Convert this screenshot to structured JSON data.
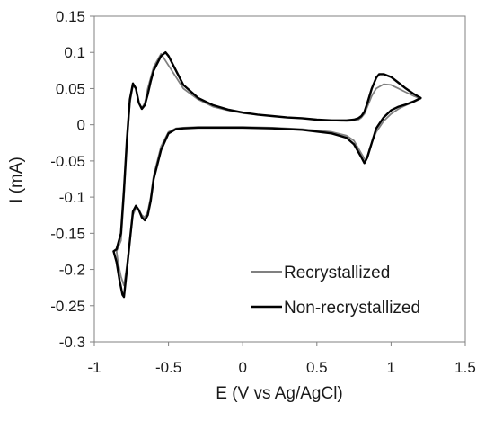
{
  "chart_data": {
    "type": "line",
    "title": "",
    "xlabel": "E (V vs Ag/AgCl)",
    "ylabel": "I (mA)",
    "xlim": [
      -1,
      1.5
    ],
    "ylim": [
      -0.3,
      0.15
    ],
    "x_ticks": [
      -1,
      -0.5,
      0,
      0.5,
      1,
      1.5
    ],
    "x_tick_labels": [
      "-1",
      "-0.5",
      "0",
      "0.5",
      "1",
      "1.5"
    ],
    "y_ticks": [
      0.15,
      0.1,
      0.05,
      0,
      -0.05,
      -0.1,
      -0.15,
      -0.2,
      -0.25,
      -0.3
    ],
    "y_tick_labels": [
      "0.15",
      "0.1",
      "0.05",
      "0",
      "-0.05",
      "-0.1",
      "-0.15",
      "-0.2",
      "-0.25",
      "-0.3"
    ],
    "grid": false,
    "legend_position": "bottom-right",
    "series": [
      {
        "name": "Recrystallized",
        "color": "#808080",
        "x": [
          -0.85,
          -0.84,
          -0.82,
          -0.8,
          -0.78,
          -0.76,
          -0.74,
          -0.72,
          -0.7,
          -0.68,
          -0.66,
          -0.64,
          -0.62,
          -0.6,
          -0.55,
          -0.5,
          -0.45,
          -0.4,
          -0.3,
          -0.2,
          -0.1,
          0.0,
          0.2,
          0.4,
          0.6,
          0.7,
          0.75,
          0.8,
          0.83,
          0.86,
          0.9,
          0.95,
          1.0,
          1.05,
          1.1,
          1.15,
          1.2,
          1.15,
          1.1,
          1.05,
          1.0,
          0.95,
          0.9,
          0.87,
          0.84,
          0.82,
          0.8,
          0.78,
          0.75,
          0.7,
          0.6,
          0.5,
          0.4,
          0.3,
          0.2,
          0.1,
          0.0,
          -0.1,
          -0.2,
          -0.3,
          -0.4,
          -0.5,
          -0.55,
          -0.6,
          -0.62,
          -0.64,
          -0.66,
          -0.68,
          -0.7,
          -0.72,
          -0.74,
          -0.76,
          -0.78,
          -0.8,
          -0.82,
          -0.85
        ],
        "y": [
          -0.175,
          -0.19,
          -0.21,
          -0.222,
          -0.195,
          -0.16,
          -0.125,
          -0.115,
          -0.118,
          -0.125,
          -0.128,
          -0.12,
          -0.1,
          -0.07,
          -0.03,
          -0.01,
          -0.005,
          -0.004,
          -0.003,
          -0.003,
          -0.003,
          -0.003,
          -0.004,
          -0.006,
          -0.01,
          -0.015,
          -0.022,
          -0.04,
          -0.05,
          -0.03,
          -0.01,
          0.005,
          0.015,
          0.022,
          0.027,
          0.031,
          0.036,
          0.04,
          0.045,
          0.05,
          0.055,
          0.056,
          0.05,
          0.04,
          0.025,
          0.015,
          0.01,
          0.007,
          0.006,
          0.005,
          0.006,
          0.007,
          0.009,
          0.01,
          0.012,
          0.014,
          0.016,
          0.02,
          0.025,
          0.035,
          0.05,
          0.082,
          0.098,
          0.08,
          0.065,
          0.05,
          0.03,
          0.023,
          0.03,
          0.05,
          0.054,
          0.03,
          -0.03,
          -0.1,
          -0.16,
          -0.175
        ]
      },
      {
        "name": "Non-recrystallized",
        "color": "#000000",
        "x": [
          -0.87,
          -0.85,
          -0.83,
          -0.81,
          -0.8,
          -0.78,
          -0.76,
          -0.74,
          -0.72,
          -0.7,
          -0.68,
          -0.66,
          -0.64,
          -0.62,
          -0.6,
          -0.55,
          -0.5,
          -0.45,
          -0.4,
          -0.3,
          -0.2,
          -0.1,
          0.0,
          0.2,
          0.4,
          0.6,
          0.7,
          0.75,
          0.8,
          0.82,
          0.84,
          0.87,
          0.9,
          0.95,
          1.0,
          1.05,
          1.1,
          1.15,
          1.2,
          1.15,
          1.1,
          1.05,
          1.0,
          0.95,
          0.92,
          0.9,
          0.87,
          0.84,
          0.82,
          0.8,
          0.78,
          0.75,
          0.7,
          0.6,
          0.5,
          0.4,
          0.3,
          0.2,
          0.1,
          0.0,
          -0.1,
          -0.2,
          -0.3,
          -0.4,
          -0.5,
          -0.52,
          -0.55,
          -0.6,
          -0.62,
          -0.64,
          -0.66,
          -0.68,
          -0.7,
          -0.72,
          -0.74,
          -0.76,
          -0.78,
          -0.8,
          -0.82,
          -0.85,
          -0.87
        ],
        "y": [
          -0.175,
          -0.19,
          -0.215,
          -0.235,
          -0.238,
          -0.2,
          -0.16,
          -0.12,
          -0.112,
          -0.118,
          -0.128,
          -0.132,
          -0.125,
          -0.105,
          -0.075,
          -0.035,
          -0.012,
          -0.006,
          -0.005,
          -0.004,
          -0.004,
          -0.004,
          -0.004,
          -0.005,
          -0.007,
          -0.012,
          -0.018,
          -0.027,
          -0.045,
          -0.053,
          -0.045,
          -0.025,
          -0.005,
          0.01,
          0.02,
          0.025,
          0.028,
          0.032,
          0.037,
          0.043,
          0.05,
          0.058,
          0.066,
          0.07,
          0.07,
          0.065,
          0.05,
          0.03,
          0.018,
          0.012,
          0.009,
          0.007,
          0.006,
          0.006,
          0.007,
          0.009,
          0.01,
          0.012,
          0.014,
          0.017,
          0.021,
          0.027,
          0.037,
          0.055,
          0.095,
          0.1,
          0.095,
          0.075,
          0.06,
          0.042,
          0.027,
          0.022,
          0.03,
          0.05,
          0.057,
          0.035,
          -0.02,
          -0.09,
          -0.15,
          -0.172,
          -0.175
        ]
      }
    ]
  }
}
